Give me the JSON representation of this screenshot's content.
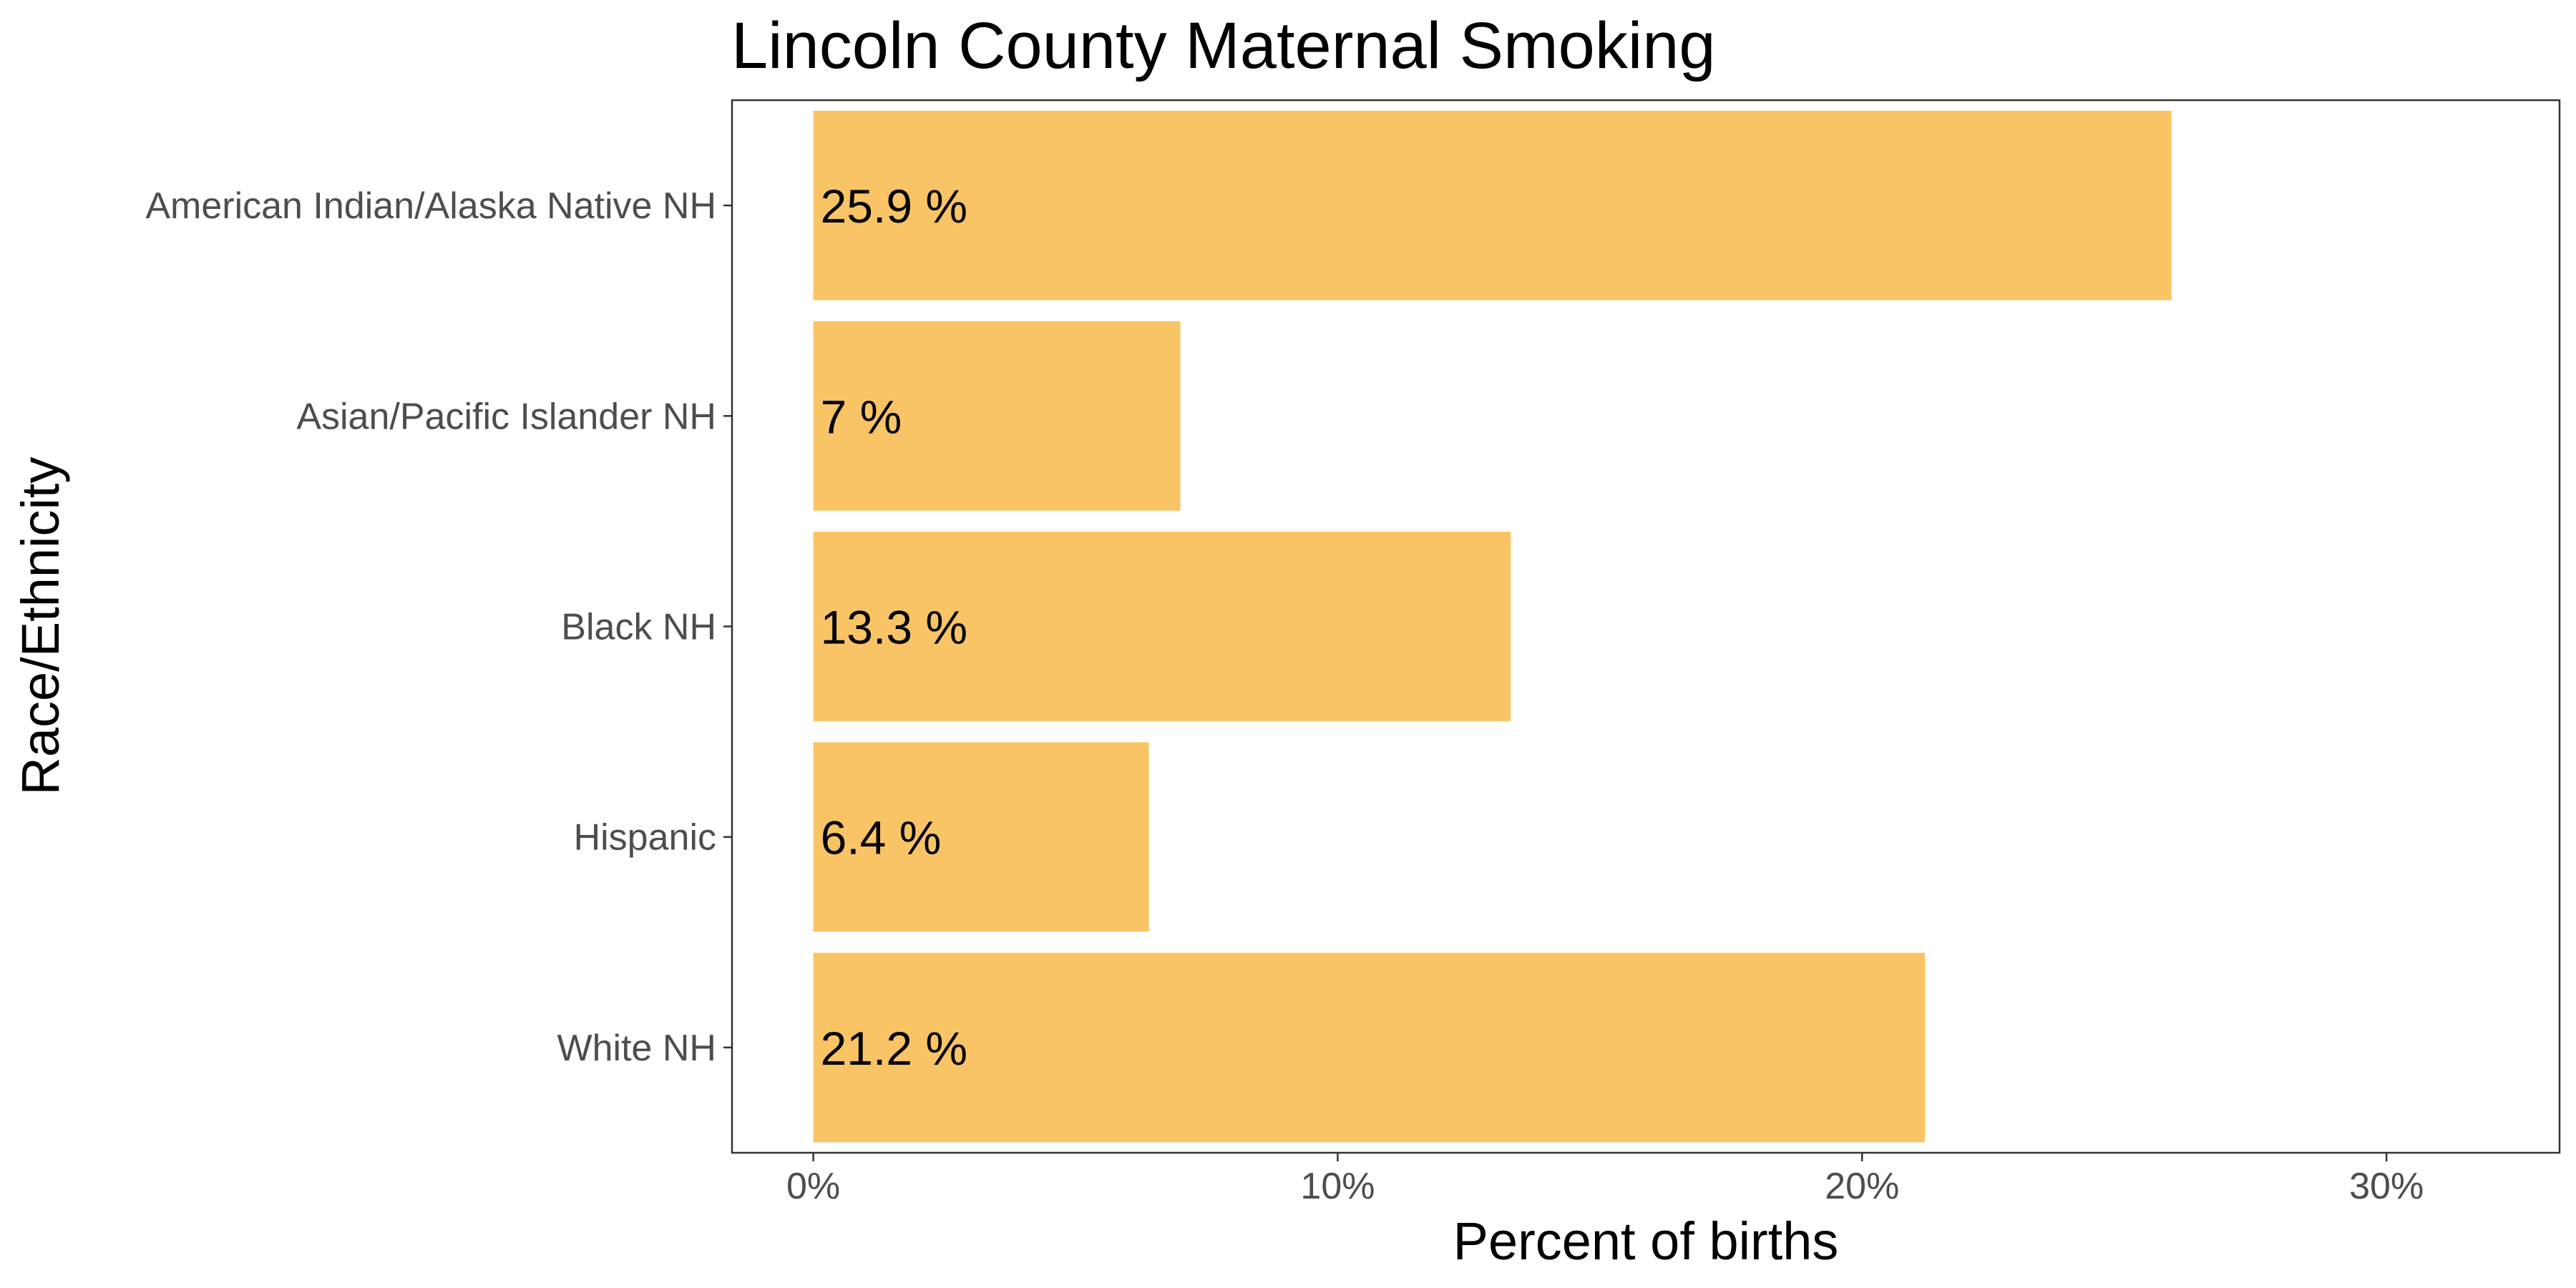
{
  "chart_data": {
    "type": "bar",
    "orientation": "horizontal",
    "title": "Lincoln County Maternal Smoking",
    "xlabel": "Percent of births",
    "ylabel": "Race/Ethnicity",
    "categories": [
      "American Indian/Alaska Native NH",
      "Asian/Pacific Islander NH",
      "Black NH",
      "Hispanic",
      "White NH"
    ],
    "values": [
      25.9,
      7.0,
      13.3,
      6.4,
      21.2
    ],
    "data_labels": [
      "25.9 %",
      "7 %",
      "13.3 %",
      "6.4 %",
      "21.2 %"
    ],
    "x_ticks": [
      0,
      10,
      20,
      30
    ],
    "x_tick_labels": [
      "0%",
      "10%",
      "20%",
      "30%"
    ],
    "xlim": [
      -1.55,
      33.3
    ],
    "bar_color": "#F9C466",
    "grid": false,
    "legend": "none"
  }
}
